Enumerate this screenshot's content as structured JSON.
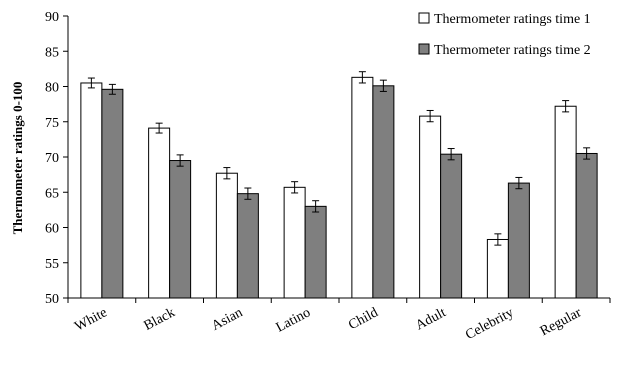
{
  "chart_data": {
    "type": "bar",
    "title": "",
    "xlabel": "",
    "ylabel": "Thermometer ratings 0-100",
    "ylim": [
      50,
      90
    ],
    "yticks": [
      "50",
      "55",
      "60",
      "65",
      "70",
      "75",
      "80",
      "85",
      "90"
    ],
    "grid": false,
    "legend_position": "top-right",
    "categories": [
      "White",
      "Black",
      "Asian",
      "Latino",
      "Child",
      "Adult",
      "Celebrity",
      "Regular"
    ],
    "series": [
      {
        "name": "Thermometer ratings time 1",
        "color": "#ffffff",
        "values": [
          80.5,
          74.1,
          67.7,
          65.7,
          81.3,
          75.8,
          58.3,
          77.2
        ],
        "error": [
          0.7,
          0.7,
          0.8,
          0.8,
          0.8,
          0.8,
          0.8,
          0.8
        ]
      },
      {
        "name": "Thermometer ratings time 2",
        "color": "#7f7f7f",
        "values": [
          79.6,
          69.5,
          64.8,
          63.0,
          80.1,
          70.4,
          66.3,
          70.5
        ],
        "error": [
          0.7,
          0.8,
          0.8,
          0.8,
          0.8,
          0.8,
          0.8,
          0.8
        ]
      }
    ]
  }
}
